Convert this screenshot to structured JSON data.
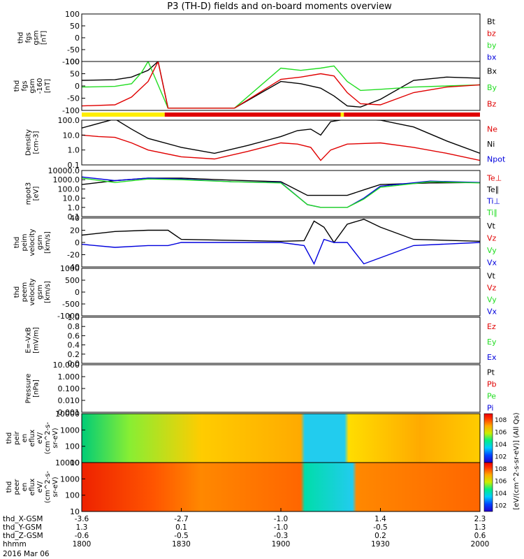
{
  "title": "P3 (TH-D) fields and on-board moments overview",
  "colors": {
    "black": "#000000",
    "red": "#e00000",
    "green": "#22dd22",
    "blue": "#0000dd",
    "yellow": "#ffee00"
  },
  "panels": [
    {
      "id": "fgs-gsm",
      "ylabel": [
        "thd",
        "fgs",
        "gsm",
        "[nT]"
      ],
      "ticks": [
        "100",
        "50",
        "0",
        "-50",
        "-100"
      ],
      "legend": [
        {
          "text": "Bt",
          "color": "black"
        },
        {
          "text": "bz",
          "color": "red"
        },
        {
          "text": "by",
          "color": "green"
        },
        {
          "text": "bx",
          "color": "blue"
        }
      ]
    },
    {
      "id": "fgs-gsm-160",
      "ylabel": [
        "thd",
        "fgs",
        "gsm",
        "-160",
        "[nT]"
      ],
      "ticks": [
        "100",
        "50",
        "0",
        "-50",
        "-100"
      ],
      "legend": [
        {
          "text": "Bx",
          "color": "black"
        },
        {
          "text": "By",
          "color": "green"
        },
        {
          "text": "Bz",
          "color": "red"
        }
      ]
    },
    {
      "id": "density",
      "ylabel": [
        "Density",
        "[cm-3]"
      ],
      "ticks": [
        "100.0",
        "10.0",
        "1.0",
        "0.1"
      ],
      "legend": [
        {
          "text": "Ne",
          "color": "red"
        },
        {
          "text": "Ni",
          "color": "black"
        },
        {
          "text": "Npot",
          "color": "blue"
        }
      ]
    },
    {
      "id": "temperature",
      "ylabel": [
        "mpot3",
        "[eV]"
      ],
      "ticks": [
        "10000.0",
        "1000.0",
        "100.0",
        "10.0",
        "1.0",
        "0.1"
      ],
      "legend": [
        {
          "text": "Te⊥",
          "color": "red"
        },
        {
          "text": "Te∥",
          "color": "black"
        },
        {
          "text": "Ti⊥",
          "color": "blue"
        },
        {
          "text": "Ti∥",
          "color": "green"
        }
      ]
    },
    {
      "id": "peim-velocity",
      "ylabel": [
        "thd",
        "peim",
        "velocity",
        "gsm",
        "[km/s]"
      ],
      "ticks": [
        "40",
        "20",
        "0",
        "-20",
        "-40"
      ],
      "legend": [
        {
          "text": "Vt",
          "color": "black"
        },
        {
          "text": "Vz",
          "color": "red"
        },
        {
          "text": "Vy",
          "color": "green"
        },
        {
          "text": "Vx",
          "color": "blue"
        }
      ]
    },
    {
      "id": "peem-velocity",
      "ylabel": [
        "thd",
        "peem",
        "velocity",
        "gsm",
        "[km/s]"
      ],
      "ticks": [
        "1000",
        "500",
        "0",
        "-500",
        "-1000"
      ],
      "legend": [
        {
          "text": "Vt",
          "color": "black"
        },
        {
          "text": "Vz",
          "color": "red"
        },
        {
          "text": "Vy",
          "color": "green"
        },
        {
          "text": "Vx",
          "color": "blue"
        }
      ]
    },
    {
      "id": "efield",
      "ylabel": [
        "E=-VxB",
        "[mV/m]"
      ],
      "ticks": [
        "1.0",
        "0.8",
        "0.6",
        "0.4",
        "0.2",
        "0.0"
      ],
      "legend": [
        {
          "text": "Ez",
          "color": "red"
        },
        {
          "text": "Ey",
          "color": "green"
        },
        {
          "text": "Ex",
          "color": "blue"
        }
      ]
    },
    {
      "id": "pressure",
      "ylabel": [
        "Pressure",
        "[nPa]"
      ],
      "ticks": [
        "10.000",
        "1.000",
        "0.100",
        "0.010",
        "0.001"
      ],
      "legend": [
        {
          "text": "Pt",
          "color": "black"
        },
        {
          "text": "Pb",
          "color": "red"
        },
        {
          "text": "Pe",
          "color": "green"
        },
        {
          "text": "Pi",
          "color": "blue"
        }
      ]
    },
    {
      "id": "peir-eflux",
      "ylabel": [
        "thd",
        "peir",
        "en",
        "eflux",
        "eV/",
        "(cm^2-s-",
        "sr-eV)"
      ],
      "ticks": [
        "10000",
        "1000",
        "100",
        "10"
      ],
      "legend": []
    },
    {
      "id": "peer-eflux",
      "ylabel": [
        "thd",
        "peer",
        "en",
        "eflux",
        "eV/",
        "(cm^2-s-",
        "sr-eV)"
      ],
      "ticks": [
        "10000",
        "1000",
        "100",
        "10"
      ],
      "legend": []
    }
  ],
  "colorbar": {
    "label": "[eV/(cm^2-s-sr-eV)] (All Qs)",
    "ticks": [
      "10^8",
      "10^6",
      "10^4",
      "10^2",
      "10^8",
      "10^6",
      "10^4",
      "10^2"
    ]
  },
  "xaxis": {
    "row_labels": [
      "thd_X-GSM",
      "thd_Y-GSM",
      "thd_Z-GSM",
      "hhmm",
      "2016 Mar 06"
    ],
    "columns": [
      {
        "X": "-3.6",
        "Y": "1.3",
        "Z": "-0.6",
        "hhmm": "1800"
      },
      {
        "X": "-2.7",
        "Y": "0.1",
        "Z": "-0.5",
        "hhmm": "1830"
      },
      {
        "X": "-1.0",
        "Y": "-1.0",
        "Z": "-0.3",
        "hhmm": "1900"
      },
      {
        "X": "1.4",
        "Y": "-0.5",
        "Z": "0.2",
        "hhmm": "1930"
      },
      {
        "X": "2.3",
        "Y": "1.3",
        "Z": "0.6",
        "hhmm": "2000"
      }
    ]
  },
  "chart_data": {
    "type": "line",
    "title": "P3 (TH-D) fields and on-board moments overview",
    "x_unit": "hhmm",
    "x_range": [
      "1800",
      "2000"
    ],
    "quality_bar": [
      {
        "from": "1800",
        "to": "1825",
        "color": "yellow"
      },
      {
        "from": "1825",
        "to": "1918",
        "color": "red"
      },
      {
        "from": "1918",
        "to": "1919",
        "color": "yellow"
      },
      {
        "from": "1919",
        "to": "2000",
        "color": "red"
      }
    ],
    "series": [
      {
        "panel": "fgs-gsm-160",
        "name": "Bx",
        "color": "black",
        "x": [
          1800,
          1810,
          1815,
          1820,
          1823,
          1826,
          1846,
          1900,
          1906,
          1912,
          1916,
          1920,
          1924,
          1930,
          1940,
          1950,
          2000
        ],
        "y": [
          15,
          18,
          30,
          60,
          100,
          -110,
          -110,
          10,
          0,
          -20,
          -55,
          -100,
          -105,
          -70,
          15,
          30,
          25
        ]
      },
      {
        "panel": "fgs-gsm-160",
        "name": "By",
        "color": "green",
        "x": [
          1800,
          1810,
          1815,
          1818,
          1820,
          1826,
          1846,
          1900,
          1906,
          1912,
          1916,
          1920,
          1924,
          1930,
          1940,
          1950,
          2000
        ],
        "y": [
          -15,
          -12,
          0,
          50,
          100,
          -110,
          -110,
          70,
          60,
          70,
          80,
          10,
          -30,
          -25,
          -15,
          -10,
          -5
        ]
      },
      {
        "panel": "fgs-gsm-160",
        "name": "Bz",
        "color": "red",
        "x": [
          1800,
          1810,
          1815,
          1820,
          1823,
          1826,
          1846,
          1900,
          1906,
          1912,
          1916,
          1920,
          1924,
          1930,
          1940,
          1950,
          2000
        ],
        "y": [
          -100,
          -95,
          -60,
          10,
          100,
          -110,
          -110,
          20,
          30,
          45,
          35,
          -40,
          -90,
          -95,
          -40,
          -15,
          -5
        ]
      },
      {
        "panel": "density",
        "name": "Ni",
        "color": "black",
        "x": [
          1800,
          1805,
          1810,
          1815,
          1820,
          1830,
          1840,
          1850,
          1900,
          1905,
          1909,
          1912,
          1915,
          1920,
          1930,
          1940,
          1950,
          2000
        ],
        "y": [
          30,
          60,
          120,
          25,
          6,
          1.5,
          0.6,
          2,
          8,
          20,
          25,
          10,
          80,
          120,
          100,
          35,
          4,
          0.6
        ]
      },
      {
        "panel": "density",
        "name": "Ne",
        "color": "red",
        "x": [
          1800,
          1805,
          1810,
          1815,
          1820,
          1830,
          1840,
          1850,
          1900,
          1905,
          1909,
          1912,
          1915,
          1920,
          1930,
          1940,
          1950,
          2000
        ],
        "y": [
          10,
          8,
          7,
          3,
          1,
          0.35,
          0.25,
          0.8,
          3,
          2.5,
          1.5,
          0.2,
          1,
          2.5,
          3,
          1.5,
          0.6,
          0.2
        ]
      },
      {
        "panel": "temperature",
        "name": "Te∥",
        "color": "black",
        "x": [
          1800,
          1810,
          1820,
          1830,
          1845,
          1900,
          1908,
          1912,
          1920,
          1925,
          1930,
          1945,
          2000
        ],
        "y": [
          300,
          800,
          1500,
          1500,
          900,
          600,
          20,
          20,
          20,
          80,
          300,
          450,
          500
        ]
      },
      {
        "panel": "temperature",
        "name": "Ti⊥",
        "color": "blue",
        "x": [
          1800,
          1810,
          1820,
          1830,
          1845,
          1900,
          1908,
          1912,
          1920,
          1925,
          1930,
          1945,
          2000
        ],
        "y": [
          2000,
          800,
          1500,
          1200,
          600,
          500,
          2,
          1,
          1,
          10,
          200,
          700,
          500
        ]
      },
      {
        "panel": "temperature",
        "name": "Ti∥",
        "color": "green",
        "x": [
          1800,
          1810,
          1820,
          1830,
          1845,
          1900,
          1908,
          1912,
          1920,
          1925,
          1930,
          1945,
          2000
        ],
        "y": [
          1500,
          500,
          1200,
          1000,
          600,
          450,
          2,
          1,
          1,
          8,
          150,
          600,
          450
        ]
      },
      {
        "panel": "peim-velocity",
        "name": "Vt",
        "color": "black",
        "x": [
          1800,
          1810,
          1820,
          1826,
          1830,
          1900,
          1907,
          1910,
          1913,
          1916,
          1920,
          1925,
          1930,
          1940,
          2000
        ],
        "y": [
          12,
          18,
          20,
          20,
          5,
          2,
          3,
          35,
          25,
          0,
          30,
          38,
          25,
          5,
          2
        ]
      },
      {
        "panel": "peim-velocity",
        "name": "Vx",
        "color": "blue",
        "x": [
          1800,
          1810,
          1820,
          1826,
          1830,
          1900,
          1907,
          1910,
          1913,
          1916,
          1920,
          1925,
          1930,
          1940,
          2000
        ],
        "y": [
          -3,
          -8,
          -5,
          -5,
          0,
          0,
          -5,
          -35,
          5,
          0,
          0,
          -35,
          -25,
          -5,
          0
        ]
      }
    ]
  }
}
